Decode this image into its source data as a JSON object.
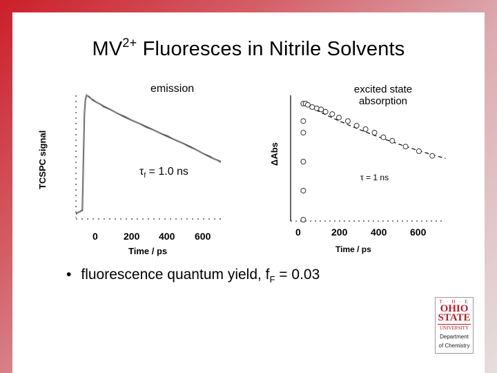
{
  "title": {
    "main": "MV",
    "sup": "2+",
    "rest": " Fluoresces in Nitrile Solvents"
  },
  "left_plot": {
    "label": "emission",
    "ylabel": "TCSPC signal",
    "xlabel": "Time / ps",
    "xticks": [
      "0",
      "200",
      "400",
      "600"
    ],
    "annotation_tau": "τ",
    "annotation_sub": "f",
    "annotation_rest": " = 1.0 ns"
  },
  "right_plot": {
    "label_line1": "excited state",
    "label_line2": "absorption",
    "ylabel": "ΔAbs",
    "xlabel": "Time / ps",
    "xticks": [
      "0",
      "200",
      "400",
      "600"
    ],
    "annotation": "τ = 1 ns"
  },
  "bullet": {
    "symbol": "•",
    "text": "fluorescence quantum yield, f",
    "sub": "F",
    "rest": " = 0.03"
  },
  "logo": {
    "the": "T · H · E",
    "ohio": "OHIO",
    "state": "STATE",
    "university": "UNIVERSITY",
    "dept_line1": "Department",
    "dept_line2": "of Chemistry"
  },
  "colors": {
    "frame_red": "#cc1f2a",
    "ohio_red": "#b01e2a",
    "trace": "#555555"
  },
  "chart_data": [
    {
      "type": "line",
      "title": "emission",
      "ylabel": "TCSPC signal",
      "xlabel": "Time / ps",
      "x": [
        -30,
        0,
        5,
        10,
        15,
        20,
        30,
        50,
        100,
        200,
        300,
        400,
        500,
        600,
        650
      ],
      "values": [
        0.02,
        0.05,
        0.45,
        0.85,
        0.97,
        1.0,
        0.99,
        0.96,
        0.91,
        0.82,
        0.74,
        0.66,
        0.58,
        0.49,
        0.45
      ],
      "xlim": [
        -30,
        660
      ]
    },
    {
      "type": "scatter",
      "title": "excited state absorption",
      "ylabel": "ΔAbs",
      "xlabel": "Time / ps",
      "x": [
        0,
        0,
        0,
        0,
        0,
        0,
        10,
        20,
        40,
        60,
        80,
        100,
        130,
        160,
        200,
        240,
        280,
        320,
        360,
        400,
        460,
        520,
        580
      ],
      "values": [
        0.0,
        0.25,
        0.5,
        0.75,
        0.85,
        1.0,
        1.0,
        0.99,
        0.97,
        0.96,
        0.95,
        0.93,
        0.91,
        0.88,
        0.85,
        0.81,
        0.78,
        0.75,
        0.71,
        0.68,
        0.63,
        0.59,
        0.55
      ],
      "xlim": [
        -20,
        660
      ]
    }
  ]
}
